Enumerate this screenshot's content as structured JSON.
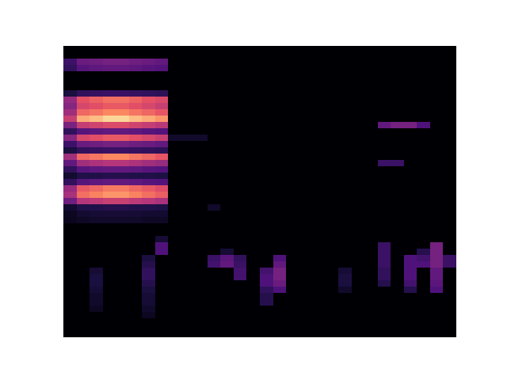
{
  "chart_data": {
    "type": "heatmap",
    "xlim": [
      -0.5,
      29.5
    ],
    "ylim": [
      45.5,
      -0.5
    ],
    "zlim": [
      0,
      100
    ],
    "tick_labels": false,
    "grid": false,
    "cells": [
      [
        0,
        0,
        0,
        0,
        0,
        0,
        0,
        0,
        0,
        0,
        0,
        0,
        0,
        0,
        0,
        0,
        0,
        0,
        0,
        0,
        0,
        0,
        0,
        0,
        0,
        0,
        0,
        0,
        0,
        0
      ],
      [
        0,
        0,
        0,
        0,
        0,
        0,
        0,
        0,
        0,
        0,
        0,
        0,
        0,
        0,
        0,
        0,
        0,
        0,
        0,
        0,
        0,
        0,
        0,
        0,
        0,
        0,
        0,
        0,
        0,
        0
      ],
      [
        21,
        32,
        33,
        35,
        35,
        33,
        32,
        30,
        0,
        0,
        0,
        0,
        0,
        0,
        0,
        0,
        0,
        0,
        0,
        0,
        0,
        0,
        0,
        0,
        0,
        0,
        0,
        0,
        0,
        0
      ],
      [
        18,
        27,
        29,
        30,
        30,
        29,
        27,
        26,
        0,
        0,
        0,
        0,
        0,
        0,
        0,
        0,
        0,
        0,
        0,
        0,
        0,
        0,
        0,
        0,
        0,
        0,
        0,
        0,
        0,
        0
      ],
      [
        0,
        0,
        0,
        0,
        0,
        0,
        0,
        0,
        0,
        0,
        0,
        0,
        0,
        0,
        0,
        0,
        0,
        0,
        0,
        0,
        0,
        0,
        0,
        0,
        0,
        0,
        0,
        0,
        0,
        0
      ],
      [
        0,
        0,
        0,
        0,
        0,
        0,
        0,
        0,
        0,
        0,
        0,
        0,
        0,
        0,
        0,
        0,
        0,
        0,
        0,
        0,
        0,
        0,
        0,
        0,
        0,
        0,
        0,
        0,
        0,
        0
      ],
      [
        0,
        0,
        0,
        0,
        0,
        0,
        0,
        0,
        0,
        0,
        0,
        0,
        0,
        0,
        0,
        0,
        0,
        0,
        0,
        0,
        0,
        0,
        0,
        0,
        0,
        0,
        0,
        0,
        0,
        0
      ],
      [
        12,
        18,
        19,
        20,
        20,
        19,
        18,
        17,
        0,
        0,
        0,
        0,
        0,
        0,
        0,
        0,
        0,
        0,
        0,
        0,
        0,
        0,
        0,
        0,
        0,
        0,
        0,
        0,
        0,
        0
      ],
      [
        42,
        63,
        67,
        70,
        70,
        67,
        63,
        60,
        0,
        0,
        0,
        0,
        0,
        0,
        0,
        0,
        0,
        0,
        0,
        0,
        0,
        0,
        0,
        0,
        0,
        0,
        0,
        0,
        0,
        0
      ],
      [
        39,
        59,
        62,
        65,
        65,
        62,
        59,
        55,
        0,
        0,
        0,
        0,
        0,
        0,
        0,
        0,
        0,
        0,
        0,
        0,
        0,
        0,
        0,
        0,
        0,
        0,
        0,
        0,
        0,
        0
      ],
      [
        45,
        68,
        71,
        75,
        75,
        71,
        68,
        64,
        0,
        0,
        0,
        0,
        0,
        0,
        0,
        0,
        0,
        0,
        0,
        0,
        0,
        0,
        0,
        0,
        0,
        0,
        0,
        0,
        0,
        0
      ],
      [
        55,
        83,
        87,
        92,
        92,
        87,
        83,
        78,
        0,
        0,
        0,
        0,
        0,
        0,
        0,
        0,
        0,
        0,
        0,
        0,
        0,
        0,
        0,
        0,
        0,
        0,
        0,
        0,
        0,
        0
      ],
      [
        36,
        54,
        57,
        60,
        60,
        57,
        54,
        51,
        0,
        0,
        0,
        0,
        0,
        0,
        0,
        0,
        0,
        0,
        0,
        0,
        0,
        0,
        0,
        0,
        30,
        35,
        35,
        25,
        0,
        0
      ],
      [
        18,
        27,
        29,
        30,
        30,
        29,
        27,
        26,
        0,
        0,
        0,
        0,
        0,
        0,
        0,
        0,
        0,
        0,
        0,
        0,
        0,
        0,
        0,
        0,
        0,
        0,
        0,
        0,
        0,
        0
      ],
      [
        39,
        59,
        62,
        65,
        65,
        62,
        59,
        55,
        8,
        8,
        8,
        0,
        0,
        0,
        0,
        0,
        0,
        0,
        0,
        0,
        0,
        0,
        0,
        0,
        0,
        0,
        0,
        0,
        0,
        0
      ],
      [
        21,
        32,
        33,
        35,
        35,
        33,
        32,
        30,
        0,
        0,
        0,
        0,
        0,
        0,
        0,
        0,
        0,
        0,
        0,
        0,
        0,
        0,
        0,
        0,
        0,
        0,
        0,
        0,
        0,
        0
      ],
      [
        12,
        18,
        19,
        20,
        20,
        19,
        18,
        17,
        0,
        0,
        0,
        0,
        0,
        0,
        0,
        0,
        0,
        0,
        0,
        0,
        0,
        0,
        0,
        0,
        0,
        0,
        0,
        0,
        0,
        0
      ],
      [
        45,
        68,
        71,
        75,
        75,
        71,
        68,
        64,
        0,
        0,
        0,
        0,
        0,
        0,
        0,
        0,
        0,
        0,
        0,
        0,
        0,
        0,
        0,
        0,
        0,
        0,
        0,
        0,
        0,
        0
      ],
      [
        30,
        45,
        48,
        50,
        50,
        48,
        45,
        43,
        0,
        0,
        0,
        0,
        0,
        0,
        0,
        0,
        0,
        0,
        0,
        0,
        0,
        0,
        0,
        0,
        20,
        20,
        0,
        0,
        0,
        0
      ],
      [
        18,
        27,
        29,
        30,
        30,
        29,
        27,
        26,
        0,
        0,
        0,
        0,
        0,
        0,
        0,
        0,
        0,
        0,
        0,
        0,
        0,
        0,
        0,
        0,
        0,
        0,
        0,
        0,
        0,
        0
      ],
      [
        9,
        14,
        14,
        15,
        15,
        14,
        14,
        13,
        0,
        0,
        0,
        0,
        0,
        0,
        0,
        0,
        0,
        0,
        0,
        0,
        0,
        0,
        0,
        0,
        0,
        0,
        0,
        0,
        0,
        0
      ],
      [
        18,
        27,
        29,
        30,
        30,
        29,
        27,
        26,
        0,
        0,
        0,
        0,
        0,
        0,
        0,
        0,
        0,
        0,
        0,
        0,
        0,
        0,
        0,
        0,
        0,
        0,
        0,
        0,
        0,
        0
      ],
      [
        43,
        65,
        68,
        72,
        72,
        68,
        65,
        61,
        0,
        0,
        0,
        0,
        0,
        0,
        0,
        0,
        0,
        0,
        0,
        0,
        0,
        0,
        0,
        0,
        0,
        0,
        0,
        0,
        0,
        0
      ],
      [
        47,
        70,
        74,
        78,
        78,
        74,
        70,
        66,
        0,
        0,
        0,
        0,
        0,
        0,
        0,
        0,
        0,
        0,
        0,
        0,
        0,
        0,
        0,
        0,
        0,
        0,
        0,
        0,
        0,
        0
      ],
      [
        33,
        50,
        52,
        55,
        55,
        52,
        50,
        47,
        0,
        0,
        0,
        0,
        0,
        0,
        0,
        0,
        0,
        0,
        0,
        0,
        0,
        0,
        0,
        0,
        0,
        0,
        0,
        0,
        0,
        0
      ],
      [
        9,
        14,
        14,
        15,
        15,
        14,
        14,
        13,
        0,
        0,
        0,
        8,
        0,
        0,
        0,
        0,
        0,
        0,
        0,
        0,
        0,
        0,
        0,
        0,
        0,
        0,
        0,
        0,
        0,
        0
      ],
      [
        6,
        9,
        10,
        10,
        10,
        10,
        9,
        9,
        0,
        0,
        0,
        0,
        0,
        0,
        0,
        0,
        0,
        0,
        0,
        0,
        0,
        0,
        0,
        0,
        0,
        0,
        0,
        0,
        0,
        0
      ],
      [
        5,
        7,
        8,
        8,
        8,
        8,
        7,
        7,
        0,
        0,
        0,
        0,
        0,
        0,
        0,
        0,
        0,
        0,
        0,
        0,
        0,
        0,
        0,
        0,
        0,
        0,
        0,
        0,
        0,
        0
      ],
      [
        0,
        0,
        0,
        0,
        0,
        0,
        0,
        0,
        0,
        0,
        0,
        0,
        0,
        0,
        0,
        0,
        0,
        0,
        0,
        0,
        0,
        0,
        0,
        0,
        0,
        0,
        0,
        0,
        0,
        0
      ],
      [
        0,
        0,
        0,
        0,
        0,
        0,
        0,
        0,
        0,
        0,
        0,
        0,
        0,
        0,
        0,
        0,
        0,
        0,
        0,
        0,
        0,
        0,
        0,
        0,
        0,
        0,
        0,
        0,
        0,
        0
      ],
      [
        0,
        0,
        0,
        0,
        0,
        0,
        0,
        10,
        0,
        0,
        0,
        0,
        0,
        0,
        0,
        0,
        0,
        0,
        0,
        0,
        0,
        0,
        0,
        0,
        0,
        0,
        0,
        0,
        0,
        0
      ],
      [
        0,
        0,
        0,
        0,
        0,
        0,
        0,
        25,
        0,
        0,
        0,
        0,
        0,
        0,
        0,
        0,
        0,
        0,
        0,
        0,
        0,
        0,
        0,
        0,
        20,
        0,
        0,
        0,
        35,
        0
      ],
      [
        0,
        0,
        0,
        0,
        0,
        0,
        0,
        25,
        0,
        0,
        0,
        0,
        10,
        0,
        0,
        0,
        0,
        0,
        0,
        0,
        0,
        0,
        0,
        0,
        20,
        0,
        0,
        15,
        35,
        0
      ],
      [
        0,
        0,
        0,
        0,
        0,
        0,
        12,
        0,
        0,
        0,
        0,
        20,
        28,
        18,
        0,
        0,
        25,
        0,
        0,
        0,
        0,
        0,
        0,
        0,
        20,
        0,
        25,
        22,
        35,
        20
      ],
      [
        0,
        0,
        0,
        0,
        0,
        0,
        15,
        0,
        0,
        0,
        0,
        22,
        30,
        20,
        0,
        0,
        30,
        0,
        0,
        0,
        0,
        0,
        0,
        0,
        20,
        0,
        25,
        25,
        35,
        20
      ],
      [
        0,
        0,
        10,
        0,
        0,
        0,
        18,
        0,
        0,
        0,
        0,
        0,
        0,
        22,
        0,
        22,
        35,
        0,
        0,
        0,
        0,
        10,
        0,
        0,
        18,
        0,
        25,
        0,
        30,
        0
      ],
      [
        0,
        0,
        12,
        0,
        0,
        0,
        18,
        0,
        0,
        0,
        0,
        0,
        0,
        22,
        0,
        25,
        35,
        0,
        0,
        0,
        0,
        12,
        0,
        0,
        18,
        0,
        25,
        0,
        30,
        0
      ],
      [
        0,
        0,
        12,
        0,
        0,
        0,
        15,
        0,
        0,
        0,
        0,
        0,
        0,
        0,
        0,
        25,
        32,
        0,
        0,
        0,
        0,
        12,
        0,
        0,
        15,
        0,
        22,
        0,
        28,
        0
      ],
      [
        0,
        0,
        10,
        0,
        0,
        0,
        12,
        0,
        0,
        0,
        0,
        0,
        0,
        0,
        0,
        18,
        25,
        0,
        0,
        0,
        0,
        8,
        0,
        0,
        0,
        0,
        15,
        0,
        25,
        0
      ],
      [
        0,
        0,
        8,
        0,
        0,
        0,
        10,
        0,
        0,
        0,
        0,
        0,
        0,
        0,
        0,
        15,
        0,
        0,
        0,
        0,
        0,
        0,
        0,
        0,
        0,
        0,
        0,
        0,
        0,
        0
      ],
      [
        0,
        0,
        8,
        0,
        0,
        0,
        10,
        0,
        0,
        0,
        0,
        0,
        0,
        0,
        0,
        15,
        0,
        0,
        0,
        0,
        0,
        0,
        0,
        0,
        0,
        0,
        0,
        0,
        0,
        0
      ],
      [
        0,
        0,
        6,
        0,
        0,
        0,
        8,
        0,
        0,
        0,
        0,
        0,
        0,
        0,
        0,
        0,
        0,
        0,
        0,
        0,
        0,
        0,
        0,
        0,
        0,
        0,
        0,
        0,
        0,
        0
      ],
      [
        0,
        0,
        0,
        0,
        0,
        0,
        6,
        0,
        0,
        0,
        0,
        0,
        0,
        0,
        0,
        0,
        0,
        0,
        0,
        0,
        0,
        0,
        0,
        0,
        0,
        0,
        0,
        0,
        0,
        0
      ],
      [
        0,
        0,
        0,
        0,
        0,
        0,
        0,
        0,
        0,
        0,
        0,
        0,
        0,
        0,
        0,
        0,
        0,
        0,
        0,
        0,
        0,
        0,
        0,
        0,
        0,
        0,
        0,
        0,
        0,
        0
      ],
      [
        0,
        0,
        0,
        0,
        0,
        0,
        0,
        0,
        0,
        0,
        0,
        0,
        0,
        0,
        0,
        0,
        0,
        0,
        0,
        0,
        0,
        0,
        0,
        0,
        0,
        0,
        0,
        0,
        0,
        0
      ],
      [
        0,
        0,
        0,
        0,
        0,
        0,
        0,
        0,
        0,
        0,
        0,
        0,
        0,
        0,
        0,
        0,
        0,
        0,
        0,
        0,
        0,
        0,
        0,
        0,
        0,
        0,
        0,
        0,
        0,
        0
      ]
    ]
  }
}
